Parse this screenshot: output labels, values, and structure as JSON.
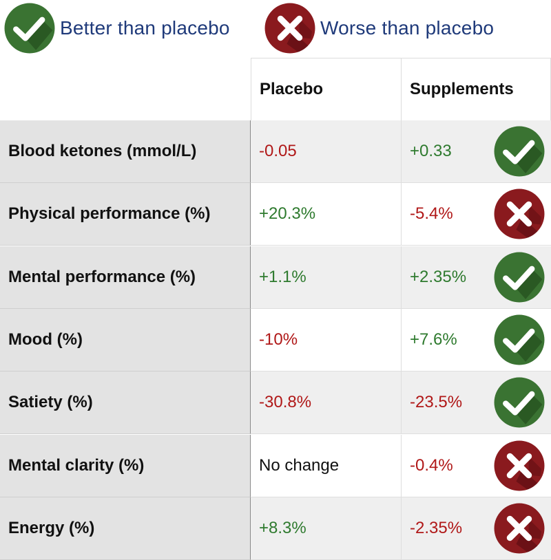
{
  "legend": {
    "better": {
      "label": "Better than placebo",
      "icon": "check-badge-icon",
      "color": "#3a7332"
    },
    "worse": {
      "label": "Worse than placebo",
      "icon": "x-badge-icon",
      "color": "#8a1a1e"
    }
  },
  "table": {
    "headers": {
      "label": "",
      "placebo": "Placebo",
      "supplements": "Supplements"
    },
    "rows": [
      {
        "label": "Blood ketones (mmol/L)",
        "placebo": "-0.05",
        "placebo_tone": "neg",
        "supplements": "+0.33",
        "supplements_tone": "pos",
        "result": "better"
      },
      {
        "label": "Physical performance (%)",
        "placebo": "+20.3%",
        "placebo_tone": "pos",
        "supplements": "-5.4%",
        "supplements_tone": "neg",
        "result": "worse"
      },
      {
        "label": "Mental performance (%)",
        "placebo": "+1.1%",
        "placebo_tone": "pos",
        "supplements": "+2.35%",
        "supplements_tone": "pos",
        "result": "better"
      },
      {
        "label": "Mood (%)",
        "placebo": "-10%",
        "placebo_tone": "neg",
        "supplements": "+7.6%",
        "supplements_tone": "pos",
        "result": "better"
      },
      {
        "label": "Satiety (%)",
        "placebo": "-30.8%",
        "placebo_tone": "neg",
        "supplements": "-23.5%",
        "supplements_tone": "neg",
        "result": "better"
      },
      {
        "label": "Mental clarity (%)",
        "placebo": "No change",
        "placebo_tone": "neutral",
        "supplements": "-0.4%",
        "supplements_tone": "neg",
        "result": "worse"
      },
      {
        "label": "Energy (%)",
        "placebo": "+8.3%",
        "placebo_tone": "pos",
        "supplements": "-2.35%",
        "supplements_tone": "neg",
        "result": "worse"
      }
    ]
  },
  "colors": {
    "positive_text": "#2e7a2e",
    "negative_text": "#b01818",
    "legend_text": "#1f3a7a"
  }
}
